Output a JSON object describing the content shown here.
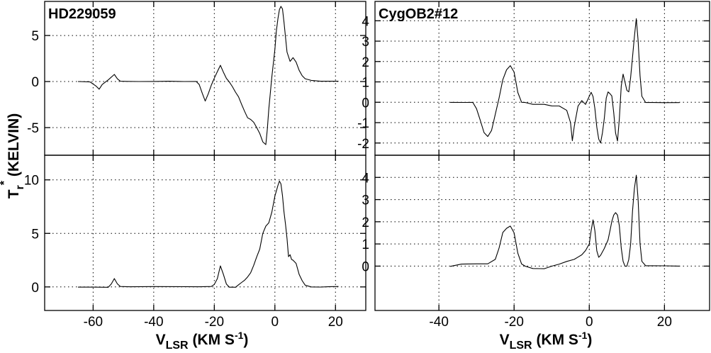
{
  "figure": {
    "ylabel": {
      "main": "T",
      "sub": "r",
      "sup": "*",
      "rest": " (KELVIN)"
    },
    "xlabel": {
      "main": "V",
      "sub": "LSR",
      "rest": " (KM S",
      "sup": "-1",
      "close": ")"
    }
  },
  "chart_data": [
    {
      "type": "line",
      "panel": "top-left",
      "label": "HD229059",
      "xlim": [
        -76,
        30
      ],
      "ylim": [
        -8,
        8.7
      ],
      "xticks": [
        -60,
        -40,
        -20,
        0,
        20
      ],
      "yticks": [
        -5,
        0,
        5
      ],
      "grid": true,
      "show_xtick_labels": false,
      "series": [
        {
          "x": [
            -65,
            -61,
            -59,
            -58,
            -57,
            -55,
            -53,
            -52,
            -51,
            -49,
            -45,
            -40,
            -35,
            -30,
            -26,
            -25,
            -24,
            -23,
            -22,
            -21,
            -20,
            -19,
            -18,
            -17,
            -16,
            -15,
            -14,
            -13,
            -12,
            -11,
            -10,
            -9,
            -8,
            -7,
            -6,
            -5,
            -4,
            -3,
            -2.5,
            -2,
            -1,
            0,
            0.5,
            1,
            1.5,
            2,
            2.5,
            3,
            3.5,
            4,
            5,
            6,
            7,
            8,
            9,
            10,
            12,
            15,
            18,
            21
          ],
          "y": [
            0,
            0,
            -0.5,
            -0.8,
            -0.3,
            0.2,
            0.8,
            0.3,
            0,
            0,
            0,
            0,
            0,
            0,
            0,
            -0.3,
            -1.2,
            -2.1,
            -1.3,
            -0.4,
            0.4,
            1.1,
            1.8,
            1.0,
            0.3,
            -0.1,
            -0.6,
            -1.2,
            -1.7,
            -2.5,
            -3.2,
            -3.9,
            -4.1,
            -4.4,
            -5.0,
            -5.6,
            -6.5,
            -6.8,
            -5.2,
            -3.0,
            0.5,
            3.5,
            5.5,
            6.8,
            7.8,
            8.2,
            7.9,
            6.5,
            4.8,
            3.2,
            2.2,
            2.6,
            2.1,
            1.2,
            0.6,
            0.3,
            0.1,
            0,
            0,
            0
          ]
        }
      ]
    },
    {
      "type": "line",
      "panel": "bottom-left",
      "label": "",
      "xlim": [
        -76,
        30
      ],
      "ylim": [
        -2.2,
        12.3
      ],
      "xticks": [
        -60,
        -40,
        -20,
        0,
        20
      ],
      "yticks": [
        0,
        5,
        10
      ],
      "grid": true,
      "show_xtick_labels": true,
      "series": [
        {
          "x": [
            -65,
            -60,
            -55,
            -54,
            -53,
            -52,
            -51,
            -48,
            -40,
            -30,
            -25,
            -21,
            -20,
            -19,
            -18,
            -17,
            -16,
            -15,
            -14,
            -13,
            -12,
            -11,
            -10,
            -9,
            -8,
            -7,
            -6,
            -5,
            -4,
            -3,
            -2,
            -1,
            0,
            0.5,
            1,
            1.5,
            2,
            2.5,
            3,
            3.5,
            4,
            4.5,
            5,
            5.5,
            6,
            7,
            8,
            9,
            10,
            12,
            15,
            18,
            21
          ],
          "y": [
            0,
            0,
            0,
            0.3,
            0.8,
            0.3,
            0,
            0,
            0,
            0,
            0,
            0,
            0.2,
            0.8,
            2.0,
            1.2,
            0.3,
            0,
            0,
            0,
            0.2,
            0.4,
            0.6,
            0.9,
            1.3,
            2.0,
            2.8,
            3.5,
            5.0,
            5.7,
            6.0,
            7.0,
            8.5,
            9.0,
            9.5,
            9.9,
            9.6,
            8.5,
            7.0,
            5.8,
            4.5,
            2.8,
            3.0,
            2.6,
            2.5,
            2.2,
            1.2,
            0.6,
            0.2,
            0,
            0,
            0,
            0
          ]
        }
      ]
    },
    {
      "type": "line",
      "panel": "top-right",
      "label": "CygOB2#12",
      "xlim": [
        -57,
        32
      ],
      "ylim": [
        -2.6,
        4.95
      ],
      "xticks": [
        -40,
        -20,
        0,
        20
      ],
      "yticks": [
        -2,
        -1,
        0,
        1,
        2,
        3,
        4
      ],
      "grid": true,
      "show_xtick_labels": false,
      "series": [
        {
          "x": [
            -37,
            -33,
            -31,
            -30,
            -29,
            -28,
            -27,
            -26,
            -25,
            -24,
            -23,
            -22,
            -21,
            -20,
            -19,
            -18,
            -17,
            -15,
            -12,
            -10,
            -8,
            -6,
            -5,
            -4.5,
            -4,
            -3,
            -2,
            -1,
            0,
            0.5,
            1,
            1.5,
            2,
            2.5,
            3,
            3.5,
            4,
            4.5,
            5,
            5.5,
            6,
            6.5,
            7,
            7.5,
            8,
            8.5,
            9,
            9.5,
            10,
            10.5,
            11,
            11.5,
            12,
            12.5,
            13,
            13.5,
            14,
            15,
            17,
            20,
            24
          ],
          "y": [
            0,
            0,
            0,
            -0.3,
            -0.9,
            -1.5,
            -1.7,
            -1.4,
            -0.6,
            0.2,
            1.1,
            1.6,
            1.8,
            1.5,
            0.5,
            0,
            0,
            -0.1,
            -0.1,
            -0.2,
            -0.2,
            -0.4,
            -1.0,
            -1.9,
            -1.2,
            -0.2,
            0.1,
            -0.1,
            0.3,
            0.5,
            0.3,
            -0.3,
            -1.2,
            -1.8,
            -2.0,
            -1.5,
            -0.8,
            0.2,
            0.5,
            0.4,
            0.3,
            -0.5,
            -1.5,
            -1.9,
            -0.8,
            0.8,
            1.4,
            1.0,
            0.6,
            0.5,
            1.2,
            2.2,
            3.2,
            4.1,
            3.0,
            1.3,
            0.3,
            0,
            0,
            0,
            0
          ]
        }
      ]
    },
    {
      "type": "line",
      "panel": "bottom-right",
      "label": "",
      "xlim": [
        -57,
        32
      ],
      "ylim": [
        -2.0,
        5.0
      ],
      "xticks": [
        -40,
        -20,
        0,
        20
      ],
      "yticks": [
        0,
        1,
        2,
        3,
        4
      ],
      "grid": true,
      "show_xtick_labels": true,
      "series": [
        {
          "x": [
            -37,
            -34,
            -30,
            -27,
            -25,
            -24,
            -23,
            -22,
            -21,
            -20,
            -19,
            -18,
            -17,
            -15,
            -12,
            -10,
            -8,
            -6,
            -4,
            -3,
            -2,
            -1,
            0,
            0.5,
            1,
            1.5,
            2,
            2.5,
            3,
            4,
            5,
            5.5,
            6,
            6.5,
            7,
            7.5,
            8,
            8.5,
            9,
            9.5,
            10,
            10.5,
            11,
            11.5,
            12,
            12.5,
            13,
            13.5,
            14,
            15,
            17,
            20,
            24
          ],
          "y": [
            0,
            0.1,
            0.1,
            0.1,
            0.3,
            0.8,
            1.5,
            1.7,
            1.8,
            1.5,
            0.6,
            0.1,
            0,
            -0.1,
            -0.1,
            0,
            0.1,
            0.2,
            0.3,
            0.4,
            0.5,
            0.7,
            1.0,
            1.6,
            2.1,
            1.6,
            0.7,
            0.4,
            0.5,
            0.8,
            1.2,
            1.6,
            2.0,
            2.3,
            2.4,
            2.3,
            1.8,
            0.8,
            0.2,
            0,
            0,
            0.3,
            1.0,
            2.5,
            3.5,
            4.1,
            3.0,
            1.0,
            0.2,
            0,
            0,
            0,
            0
          ]
        }
      ]
    }
  ]
}
